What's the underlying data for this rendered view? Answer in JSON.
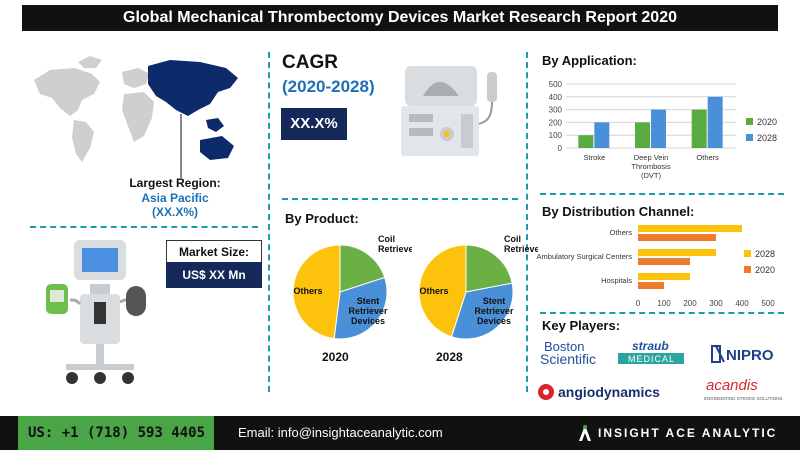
{
  "title": "Global Mechanical Thrombectomy Devices Market Research Report 2020",
  "region": {
    "label": "Largest Region:",
    "name": "Asia Pacific",
    "share": "(XX.X%)"
  },
  "cagr": {
    "title": "CAGR",
    "period": "(2020-2028)",
    "value": "XX.X%"
  },
  "market_size": {
    "label": "Market Size:",
    "value": "US$ XX Mn"
  },
  "sections": {
    "by_product": "By Product:",
    "by_application": "By Application:",
    "by_distribution": "By Distribution Channel:",
    "key_players": "Key Players:"
  },
  "colors": {
    "series_2020": "#5aab42",
    "series_2028": "#4a90d9",
    "dist_2028": "#fdc20c",
    "dist_2020": "#ee7a2c",
    "pie_others": "#fdc20c",
    "pie_coil": "#6ab045",
    "pie_stent": "#4a90d9",
    "navy": "#14285a",
    "accent_blue": "#1f6fb5"
  },
  "chart_data": [
    {
      "type": "pie",
      "title": "2020",
      "labels": [
        "Coil Retriever...",
        "Stent Retriever Devices",
        "Others"
      ],
      "values": [
        20,
        32,
        48
      ]
    },
    {
      "type": "pie",
      "title": "2028",
      "labels": [
        "Coil Retriever...",
        "Stent Retriever Devices",
        "Others"
      ],
      "values": [
        22,
        33,
        45
      ]
    },
    {
      "type": "bar",
      "title": "By Application:",
      "categories": [
        "Stroke",
        "Deep Vein Thrombosis (DVT)",
        "Others"
      ],
      "category_lines": [
        [
          "Stroke"
        ],
        [
          "Deep Vein",
          "Thrombosis",
          "(DVT)"
        ],
        [
          "Others"
        ]
      ],
      "series": [
        {
          "name": "2020",
          "values": [
            100,
            200,
            300
          ]
        },
        {
          "name": "2028",
          "values": [
            200,
            300,
            400
          ]
        }
      ],
      "ylim": [
        0,
        500
      ],
      "yticks": [
        0,
        100,
        200,
        300,
        400,
        500
      ],
      "legend": "right",
      "grid": true
    },
    {
      "type": "bar",
      "orientation": "horizontal",
      "title": "By Distribution Channel:",
      "categories": [
        "Others",
        "Ambulatory Surgical Centers",
        "Hospitals"
      ],
      "series": [
        {
          "name": "2028",
          "values": [
            400,
            300,
            200
          ]
        },
        {
          "name": "2020",
          "values": [
            300,
            200,
            100
          ]
        }
      ],
      "xlim": [
        0,
        500
      ],
      "xticks": [
        0,
        100,
        200,
        300,
        400,
        500
      ],
      "legend": "right"
    }
  ],
  "key_players": {
    "boston_top": "Boston",
    "boston_bottom": "Scientific",
    "straub_top": "straub",
    "straub_bottom": "MEDICAL",
    "nipro": "NIPRO",
    "angio": "angiodynamics",
    "acandis": "acandis",
    "acandis_sub": "ENGINEERING STROKE SOLUTIONS"
  },
  "footer": {
    "phone": "US: +1 (718) 593 4405",
    "email": "Email: info@insightaceanalytic.com",
    "brand": "INSIGHT ACE ANALYTIC"
  }
}
